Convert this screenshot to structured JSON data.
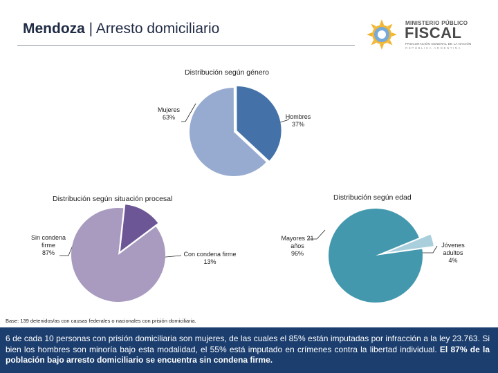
{
  "header": {
    "title_bold": "Mendoza",
    "title_rest": " | Arresto domiciliario",
    "logo": {
      "line1": "MINISTERIO PÚBLICO",
      "line2": "FISCAL",
      "line3": "PROCURACIÓN GENERAL DE LA NACIÓN",
      "line4": "REPÚBLICA ARGENTINA"
    }
  },
  "colors": {
    "mujeres": "#97abd1",
    "hombres": "#4472a8",
    "sin_condena": "#a99bbf",
    "con_condena": "#6d5695",
    "mayores": "#4398ae",
    "jovenes": "#a9cfdc",
    "footer": "#1c3e6e"
  },
  "chart_data": [
    {
      "type": "pie",
      "title": "Distribución según género",
      "slices": [
        {
          "label": "Mujeres",
          "value": 63,
          "display": "63%"
        },
        {
          "label": "Hombres",
          "value": 37,
          "display": "37%"
        }
      ]
    },
    {
      "type": "pie",
      "title": "Distribución según situación procesal",
      "slices": [
        {
          "label": "Sin condena firme",
          "value": 87,
          "display": "87%"
        },
        {
          "label": "Con condena firme",
          "value": 13,
          "display": "13%"
        }
      ]
    },
    {
      "type": "pie",
      "title": "Distribución según edad",
      "slices": [
        {
          "label": "Mayores 21 años",
          "value": 96,
          "display": "96%"
        },
        {
          "label": "Jóvenes adultos",
          "value": 4,
          "display": "4%"
        }
      ]
    }
  ],
  "labels": {
    "mujeres_name": "Mujeres",
    "hombres_name": "Hombres",
    "sin_condena_l1": "Sin condena",
    "sin_condena_l2": "firme",
    "con_condena_name": "Con condena firme",
    "mayores_l1": "Mayores 21",
    "mayores_l2": "años",
    "jovenes_l1": "Jóvenes",
    "jovenes_l2": "adultos"
  },
  "footnote": "Base: 139 detenidos/as con causas federales o nacionales con prisión domiciliaria.",
  "footer": {
    "text": "6 de cada 10 personas con prisión domiciliaria son mujeres, de las cuales el 85% están imputadas por infracción a la ley 23.763. Si bien los hombres son minoría bajo esta modalidad, el 55% está imputado en crímenes contra la libertad individual. ",
    "bold": "El 87% de la población bajo arresto domiciliario se encuentra sin condena firme."
  }
}
